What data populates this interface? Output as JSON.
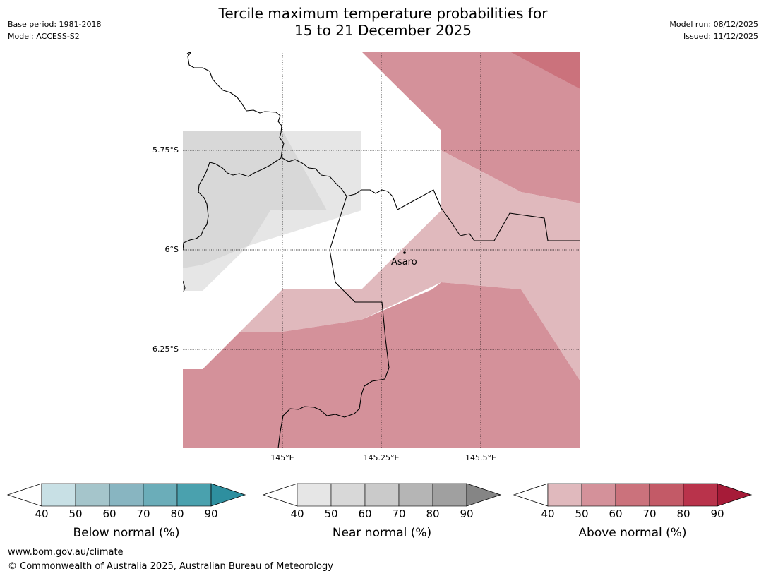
{
  "title_line1": "Tercile maximum temperature probabilities for",
  "title_line2": "15 to 21 December 2025",
  "base_period": "Base period: 1981-2018",
  "model": "Model: ACCESS-S2",
  "model_run": "Model run: 08/12/2025",
  "issued": "Issued: 11/12/2025",
  "map": {
    "lat_labels": [
      "5.75°S",
      "6°S",
      "6.25°S"
    ],
    "lon_labels": [
      "145°E",
      "145.25°E",
      "145.5°E"
    ],
    "town": "Asaro"
  },
  "legend": {
    "below": {
      "label": "Below normal (%)",
      "ticks": [
        "40",
        "50",
        "60",
        "70",
        "80",
        "90"
      ],
      "colors": [
        "#c8e0e5",
        "#a5c5cb",
        "#88b5c1",
        "#6badb9",
        "#4aa1ae",
        "#2e8f9f"
      ]
    },
    "near": {
      "label": "Near normal (%)",
      "ticks": [
        "40",
        "50",
        "60",
        "70",
        "80",
        "90"
      ],
      "colors": [
        "#e6e6e6",
        "#d8d8d8",
        "#cacaca",
        "#b5b5b5",
        "#a0a0a0",
        "#858585"
      ]
    },
    "above": {
      "label": "Above normal (%)",
      "ticks": [
        "40",
        "50",
        "60",
        "70",
        "80",
        "90"
      ],
      "colors": [
        "#e0b9bd",
        "#d4919a",
        "#cb727c",
        "#c35a67",
        "#b9334b",
        "#a61b38"
      ]
    }
  },
  "footer_url": "www.bom.gov.au/climate",
  "footer_copyright": "© Commonwealth of Australia 2025, Australian Bureau of Meteorology"
}
